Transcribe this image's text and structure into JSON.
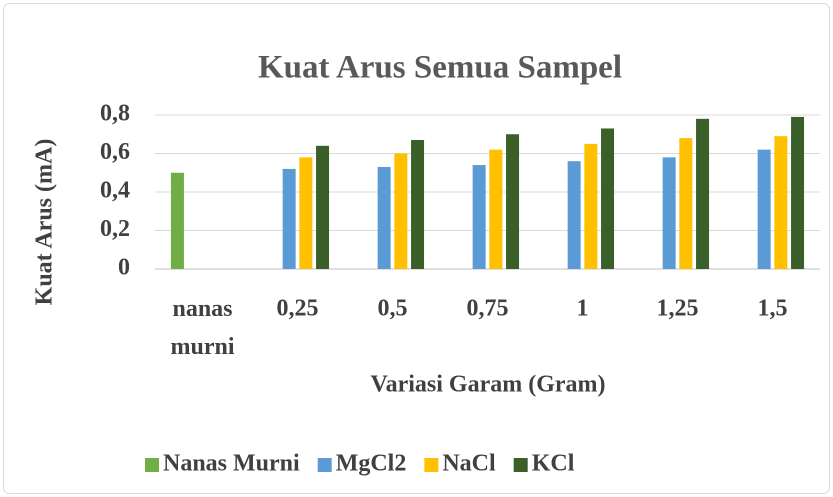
{
  "chart_data": {
    "type": "bar",
    "title": "Kuat Arus  Semua Sampel",
    "x_label": "Variasi Garam (Gram)",
    "y_label": "Kuat Arus (mA)",
    "categories": [
      "nanas murni",
      "0,25",
      "0,5",
      "0,75",
      "1",
      "1,25",
      "1,5"
    ],
    "series": [
      {
        "name": "Nanas Murni",
        "color": "#70ad47",
        "values": [
          0.5,
          null,
          null,
          null,
          null,
          null,
          null
        ]
      },
      {
        "name": "MgCl2",
        "color": "#5b9bd5",
        "values": [
          null,
          0.52,
          0.53,
          0.54,
          0.56,
          0.58,
          0.62
        ]
      },
      {
        "name": "NaCl",
        "color": "#ffc000",
        "values": [
          null,
          0.58,
          0.6,
          0.62,
          0.65,
          0.68,
          0.69
        ]
      },
      {
        "name": "KCl",
        "color": "#3a5f28",
        "values": [
          null,
          0.64,
          0.67,
          0.7,
          0.73,
          0.78,
          0.79
        ]
      }
    ],
    "ylim": [
      0,
      0.8
    ],
    "yticks": [
      0,
      {
        "value": 0.2,
        "label": "0,2"
      },
      {
        "value": 0.4,
        "label": "0,4"
      },
      {
        "value": 0.6,
        "label": "0,6"
      },
      {
        "value": 0.8,
        "label": "0,8"
      }
    ],
    "grid": true,
    "legend": "bottom"
  }
}
